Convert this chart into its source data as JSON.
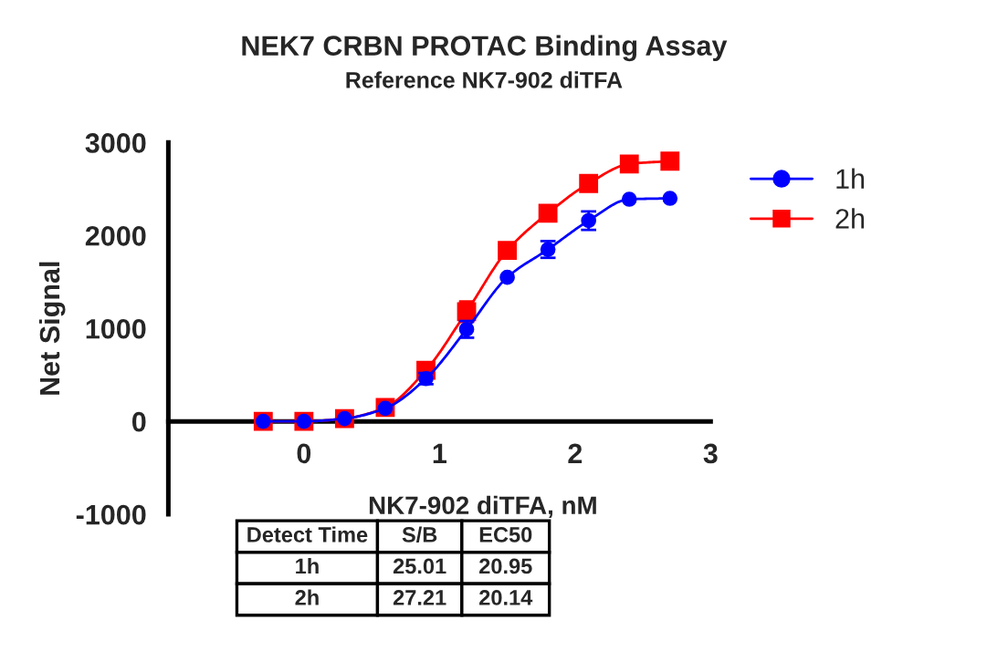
{
  "chart_data": {
    "type": "line",
    "title": "NEK7 CRBN PROTAC Binding Assay",
    "subtitle": "Reference NK7-902 diTFA",
    "xlabel": "NK7-902 diTFA, nM",
    "ylabel": "Net Signal",
    "x": [
      -0.3,
      0,
      0.3,
      0.6,
      0.9,
      1.2,
      1.5,
      1.8,
      2.1,
      2.4,
      2.7
    ],
    "series": [
      {
        "name": "1h",
        "color": "#0000ff",
        "marker": "circle",
        "values": [
          0,
          0,
          30,
          140,
          460,
          990,
          1550,
          1850,
          2160,
          2390,
          2400
        ],
        "errors": [
          null,
          null,
          null,
          null,
          60,
          90,
          null,
          90,
          100,
          null,
          null
        ]
      },
      {
        "name": "2h",
        "color": "#ff0000",
        "marker": "square",
        "values": [
          0,
          0,
          30,
          150,
          550,
          1180,
          1840,
          2240,
          2560,
          2770,
          2800
        ],
        "errors": [
          null,
          null,
          null,
          null,
          70,
          110,
          null,
          null,
          null,
          null,
          null
        ]
      }
    ],
    "xlim": [
      -1,
      3
    ],
    "xticks": [
      {
        "value": -1,
        "label": null
      },
      0,
      1,
      2,
      3
    ],
    "ylim": [
      -1000,
      3000
    ],
    "yticks": [
      -1000,
      0,
      1000,
      2000,
      3000
    ],
    "grid": false,
    "legend": "top right",
    "line_style": "solid",
    "annotations": [
      "Detect Time",
      "S/B",
      "EC50",
      "1h",
      "25.01",
      "20.95",
      "2h",
      "27.21",
      "20.14"
    ]
  }
}
